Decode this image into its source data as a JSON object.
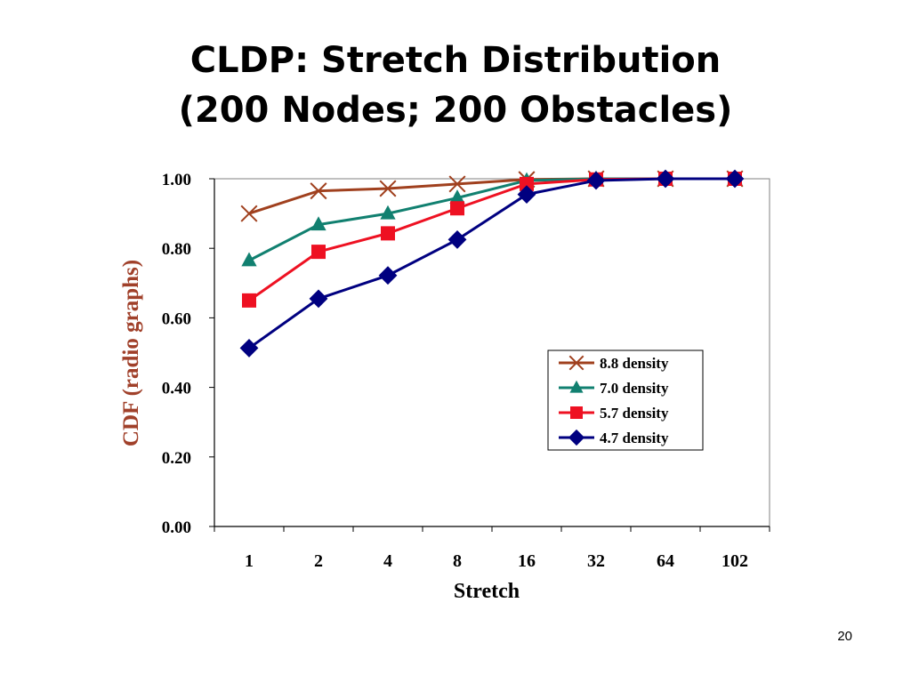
{
  "slide": {
    "title_line1": "CLDP: Stretch Distribution",
    "title_line2": "(200 Nodes; 200 Obstacles)",
    "page_number": "20"
  },
  "colors": {
    "ylabel": "#A0402A",
    "series": [
      "#A0401E",
      "#118070",
      "#EE1122",
      "#000080"
    ]
  },
  "chart_data": {
    "type": "line",
    "title": "",
    "xlabel": "Stretch",
    "ylabel": "CDF (radio graphs)",
    "categories": [
      "1",
      "2",
      "4",
      "8",
      "16",
      "32",
      "64",
      "102"
    ],
    "ylim": [
      0,
      1
    ],
    "yticks": [
      "0.00",
      "0.20",
      "0.40",
      "0.60",
      "0.80",
      "1.00"
    ],
    "grid": false,
    "legend_position": "right-middle",
    "series": [
      {
        "name": "8.8 density",
        "marker": "x",
        "values": [
          0.9,
          0.965,
          0.972,
          0.985,
          0.998,
          1.0,
          1.0,
          1.0
        ]
      },
      {
        "name": "7.0 density",
        "marker": "triangle",
        "values": [
          0.765,
          0.868,
          0.9,
          0.945,
          0.995,
          1.0,
          1.0,
          1.0
        ]
      },
      {
        "name": "5.7 density",
        "marker": "square",
        "values": [
          0.65,
          0.79,
          0.843,
          0.915,
          0.985,
          0.998,
          1.0,
          1.0
        ]
      },
      {
        "name": "4.7 density",
        "marker": "diamond",
        "values": [
          0.513,
          0.655,
          0.722,
          0.825,
          0.955,
          0.995,
          1.0,
          1.0
        ]
      }
    ]
  }
}
